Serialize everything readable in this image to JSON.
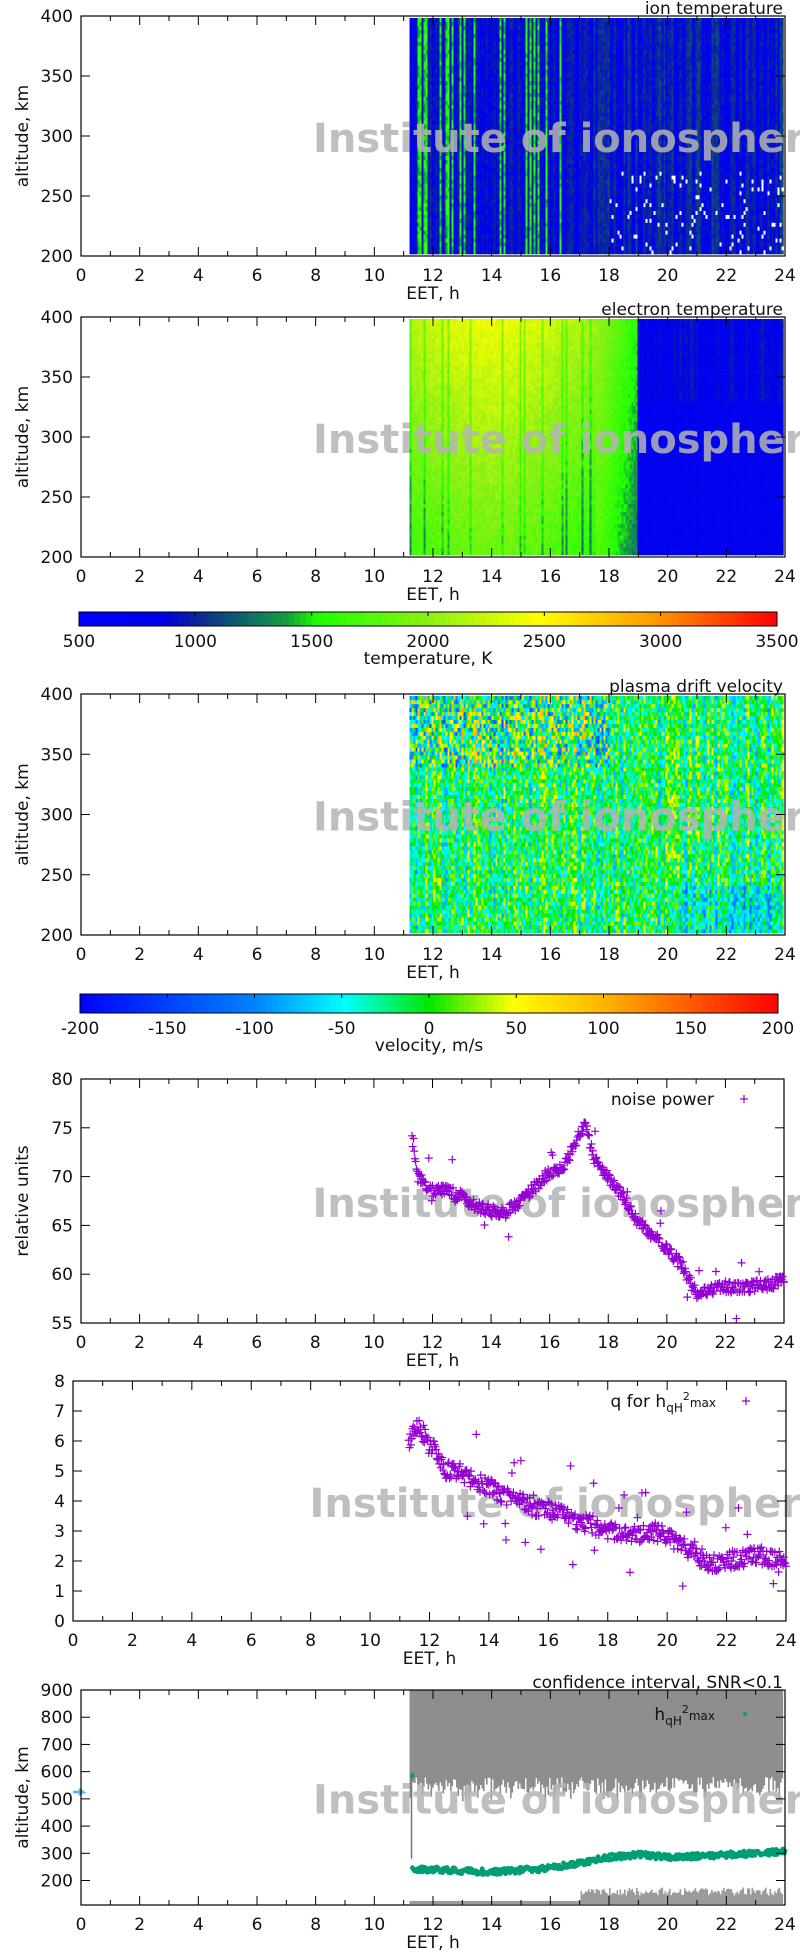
{
  "watermark": "Institute of ionosphere, Kharkiv",
  "colors": {
    "scatter_purple": "#9400d3",
    "scatter_green": "#009e73",
    "confidence_gray": "#8c8c8c",
    "marker_blue": "#56b4e9"
  },
  "chart_data": [
    {
      "id": "ion",
      "type": "heatmap",
      "title": "ion temperature",
      "xlabel": "EET, h",
      "ylabel": "altitude, km",
      "xlim": [
        0,
        24
      ],
      "ylim": [
        200,
        400
      ],
      "xticks": [
        0,
        2,
        4,
        6,
        8,
        10,
        12,
        14,
        16,
        18,
        20,
        22,
        24
      ],
      "yticks": [
        200,
        250,
        300,
        350,
        400
      ],
      "data_start_h": 11.2,
      "colorbar": "temperature",
      "description_values": {
        "typical_K": [
          700,
          1300
        ]
      }
    },
    {
      "id": "electron",
      "type": "heatmap",
      "title": "electron temperature",
      "xlabel": "EET, h",
      "ylabel": "altitude, km",
      "xlim": [
        0,
        24
      ],
      "ylim": [
        200,
        400
      ],
      "xticks": [
        0,
        2,
        4,
        6,
        8,
        10,
        12,
        14,
        16,
        18,
        20,
        22,
        24
      ],
      "yticks": [
        200,
        250,
        300,
        350,
        400
      ],
      "data_start_h": 11.2,
      "colorbar": "temperature"
    },
    {
      "id": "temperature_colorbar",
      "type": "colorbar",
      "label": "temperature, K",
      "range": [
        500,
        3500
      ],
      "ticks": [
        500,
        1000,
        1500,
        2000,
        2500,
        3000,
        3500
      ]
    },
    {
      "id": "drift",
      "type": "heatmap",
      "title": "plasma drift velocity",
      "xlabel": "EET, h",
      "ylabel": "altitude, km",
      "xlim": [
        0,
        24
      ],
      "ylim": [
        200,
        400
      ],
      "xticks": [
        0,
        2,
        4,
        6,
        8,
        10,
        12,
        14,
        16,
        18,
        20,
        22,
        24
      ],
      "yticks": [
        200,
        250,
        300,
        350,
        400
      ],
      "data_start_h": 11.2,
      "colorbar": "velocity"
    },
    {
      "id": "velocity_colorbar",
      "type": "colorbar",
      "label": "velocity, m/s",
      "range": [
        -200,
        200
      ],
      "ticks": [
        -200,
        -150,
        -100,
        -50,
        0,
        50,
        100,
        150,
        200
      ]
    },
    {
      "id": "noise",
      "type": "scatter",
      "xlabel": "EET, h",
      "ylabel": "relative units",
      "xlim": [
        0,
        24
      ],
      "ylim": [
        55,
        80
      ],
      "xticks": [
        0,
        2,
        4,
        6,
        8,
        10,
        12,
        14,
        16,
        18,
        20,
        22,
        24
      ],
      "yticks": [
        55,
        60,
        65,
        70,
        75,
        80
      ],
      "legend": "top-right",
      "series": [
        {
          "name": "noise power",
          "marker": "+",
          "color": "#9400d3",
          "x": [
            11.3,
            11.5,
            12,
            12.5,
            13,
            13.5,
            14,
            14.5,
            15,
            15.5,
            16,
            16.5,
            17,
            17.2,
            17.5,
            18,
            18.5,
            19,
            19.5,
            20,
            20.5,
            21,
            21.5,
            22,
            22.5,
            23,
            23.5,
            24
          ],
          "y": [
            74,
            70,
            68.5,
            68.5,
            68,
            67,
            66.5,
            66.3,
            67.5,
            69,
            70.5,
            71,
            74.5,
            75.5,
            72,
            70,
            68,
            65.5,
            64,
            62.5,
            61,
            58,
            58.5,
            58.7,
            58.5,
            58.8,
            59,
            59.3
          ]
        }
      ]
    },
    {
      "id": "q",
      "type": "scatter",
      "xlabel": "EET, h",
      "ylabel": "",
      "xlim": [
        0,
        24
      ],
      "ylim": [
        0,
        8
      ],
      "xticks": [
        0,
        2,
        4,
        6,
        8,
        10,
        12,
        14,
        16,
        18,
        20,
        22,
        24
      ],
      "yticks": [
        0,
        1,
        2,
        3,
        4,
        5,
        6,
        7,
        8
      ],
      "legend": "top-right",
      "series": [
        {
          "name": "q for hqH2max",
          "name_parts": [
            "q for h",
            "qH",
            "2",
            "max"
          ],
          "marker": "+",
          "color": "#9400d3",
          "x": [
            11.3,
            11.6,
            12,
            12.5,
            13,
            13.5,
            14,
            14.5,
            15,
            15.5,
            16,
            16.5,
            17,
            17.5,
            18,
            18.5,
            19,
            19.5,
            20,
            20.5,
            21,
            21.5,
            22,
            22.5,
            23,
            23.5,
            24
          ],
          "y": [
            6,
            6.5,
            6,
            5,
            5,
            4.7,
            4.5,
            4.2,
            4,
            3.8,
            3.7,
            3.5,
            3.3,
            3.2,
            3,
            2.9,
            2.9,
            3,
            2.8,
            2.5,
            2.2,
            1.9,
            2,
            2.1,
            2.2,
            2.1,
            2
          ]
        }
      ]
    },
    {
      "id": "height",
      "type": "scatter",
      "title": "confidence interval, SNR<0.1",
      "xlabel": "EET, h",
      "ylabel": "altitude, km",
      "xlim": [
        0,
        24
      ],
      "ylim": [
        110,
        900
      ],
      "xticks": [
        0,
        2,
        4,
        6,
        8,
        10,
        12,
        14,
        16,
        18,
        20,
        22,
        24
      ],
      "yticks": [
        200,
        300,
        400,
        500,
        600,
        700,
        800,
        900
      ],
      "legend": "top-right",
      "series": [
        {
          "name": "hqH2max",
          "name_parts": [
            "h",
            "qH",
            "2",
            "max"
          ],
          "marker": "dot",
          "color": "#009e73",
          "x": [
            11.3,
            12,
            13,
            14,
            15,
            16,
            17,
            18,
            19,
            20,
            21,
            22,
            23,
            24
          ],
          "y": [
            240,
            240,
            235,
            232,
            238,
            245,
            265,
            285,
            295,
            285,
            290,
            295,
            300,
            305
          ]
        }
      ],
      "confidence_interval": {
        "x_start": 11.2,
        "upper_band_lower_edge_km": 520,
        "lower_band_top_km_before_17h": 125,
        "lower_band_top_km_after_17h": 160
      }
    }
  ]
}
